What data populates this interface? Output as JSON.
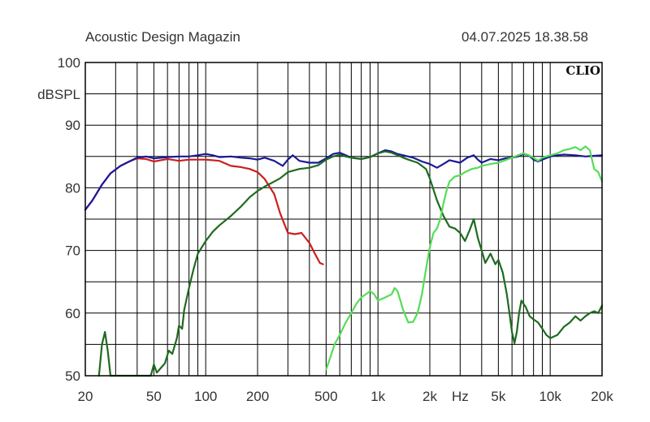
{
  "header": {
    "publisher": "Acoustic Design Magazin",
    "datetime": "04.07.2025 18.38.58"
  },
  "logo": "CLIO",
  "chart_data": {
    "type": "line",
    "title": "",
    "xlabel": "Hz",
    "ylabel": "dBSPL",
    "x_scale": "log",
    "xlim": [
      20,
      20000
    ],
    "ylim": [
      50,
      100
    ],
    "grid": true,
    "x_tick_labels": [
      {
        "v": 20,
        "label": "20"
      },
      {
        "v": 50,
        "label": "50"
      },
      {
        "v": 100,
        "label": "100"
      },
      {
        "v": 200,
        "label": "200"
      },
      {
        "v": 500,
        "label": "500"
      },
      {
        "v": 1000,
        "label": "1k"
      },
      {
        "v": 2000,
        "label": "2k"
      },
      {
        "v": 5000,
        "label": "5k"
      },
      {
        "v": 10000,
        "label": "10k"
      },
      {
        "v": 20000,
        "label": "20k"
      }
    ],
    "y_tick_labels": [
      {
        "v": 100,
        "label": "100"
      },
      {
        "v": 90,
        "label": "90"
      },
      {
        "v": 80,
        "label": "80"
      },
      {
        "v": 70,
        "label": "70"
      },
      {
        "v": 60,
        "label": "60"
      },
      {
        "v": 50,
        "label": "50"
      }
    ],
    "series": [
      {
        "color": "#cc1f1f",
        "points": [
          [
            20,
            76.5
          ],
          [
            22,
            78
          ],
          [
            25,
            80.5
          ],
          [
            28,
            82.3
          ],
          [
            32,
            83.5
          ],
          [
            36,
            84.2
          ],
          [
            40,
            84.7
          ],
          [
            45,
            84.6
          ],
          [
            50,
            84.2
          ],
          [
            55,
            84.4
          ],
          [
            60,
            84.6
          ],
          [
            70,
            84.3
          ],
          [
            80,
            84.5
          ],
          [
            100,
            84.5
          ],
          [
            120,
            84.3
          ],
          [
            140,
            83.5
          ],
          [
            160,
            83.3
          ],
          [
            180,
            83
          ],
          [
            200,
            82.5
          ],
          [
            220,
            81.4
          ],
          [
            250,
            79
          ],
          [
            270,
            76
          ],
          [
            300,
            72.8
          ],
          [
            330,
            72.6
          ],
          [
            360,
            72.8
          ],
          [
            400,
            71.2
          ],
          [
            430,
            69.5
          ],
          [
            460,
            68
          ],
          [
            480,
            67.8
          ]
        ]
      },
      {
        "color": "#1a1a99",
        "points": [
          [
            20,
            76.5
          ],
          [
            22,
            78
          ],
          [
            25,
            80.5
          ],
          [
            28,
            82.3
          ],
          [
            32,
            83.5
          ],
          [
            36,
            84.2
          ],
          [
            40,
            84.8
          ],
          [
            45,
            85
          ],
          [
            50,
            84.7
          ],
          [
            60,
            84.9
          ],
          [
            70,
            85
          ],
          [
            80,
            85
          ],
          [
            90,
            85.2
          ],
          [
            100,
            85.4
          ],
          [
            110,
            85.2
          ],
          [
            120,
            84.9
          ],
          [
            140,
            85
          ],
          [
            160,
            84.8
          ],
          [
            180,
            84.7
          ],
          [
            200,
            84.5
          ],
          [
            220,
            84.8
          ],
          [
            250,
            84.3
          ],
          [
            280,
            83.5
          ],
          [
            300,
            84.5
          ],
          [
            320,
            85.2
          ],
          [
            350,
            84.3
          ],
          [
            400,
            84
          ],
          [
            450,
            84
          ],
          [
            500,
            84.7
          ],
          [
            550,
            85.4
          ],
          [
            600,
            85.6
          ],
          [
            650,
            85.2
          ],
          [
            700,
            84.8
          ],
          [
            800,
            84.6
          ],
          [
            900,
            84.9
          ],
          [
            1000,
            85.5
          ],
          [
            1100,
            86
          ],
          [
            1200,
            85.8
          ],
          [
            1300,
            85.4
          ],
          [
            1400,
            85.2
          ],
          [
            1600,
            84.8
          ],
          [
            1800,
            84.2
          ],
          [
            2000,
            83.8
          ],
          [
            2200,
            83.2
          ],
          [
            2400,
            83.8
          ],
          [
            2600,
            84.4
          ],
          [
            2800,
            84.2
          ],
          [
            3000,
            84
          ],
          [
            3300,
            84.8
          ],
          [
            3600,
            85.2
          ],
          [
            3800,
            84.5
          ],
          [
            4000,
            84
          ],
          [
            4500,
            84.6
          ],
          [
            5000,
            84.4
          ],
          [
            5500,
            84.7
          ],
          [
            6000,
            84.8
          ],
          [
            6500,
            85
          ],
          [
            7000,
            85.4
          ],
          [
            7500,
            85.2
          ],
          [
            8000,
            84.5
          ],
          [
            8500,
            84.2
          ],
          [
            9000,
            84.5
          ],
          [
            10000,
            85
          ],
          [
            11000,
            85.2
          ],
          [
            12000,
            85.3
          ],
          [
            14000,
            85.2
          ],
          [
            16000,
            85
          ],
          [
            18000,
            85.1
          ],
          [
            20000,
            85.2
          ]
        ]
      },
      {
        "color": "#1e6b1e",
        "points": [
          [
            24,
            50
          ],
          [
            25,
            55
          ],
          [
            26,
            57
          ],
          [
            27,
            54
          ],
          [
            28,
            50
          ],
          [
            48,
            50
          ],
          [
            50,
            51.8
          ],
          [
            52,
            50.5
          ],
          [
            58,
            52
          ],
          [
            61,
            54
          ],
          [
            64,
            53.5
          ],
          [
            68,
            56
          ],
          [
            70,
            58
          ],
          [
            73,
            57.5
          ],
          [
            75,
            60.5
          ],
          [
            80,
            64
          ],
          [
            85,
            67
          ],
          [
            90,
            69.5
          ],
          [
            100,
            71.5
          ],
          [
            110,
            73
          ],
          [
            120,
            74
          ],
          [
            140,
            75.5
          ],
          [
            160,
            77
          ],
          [
            180,
            78.5
          ],
          [
            200,
            79.5
          ],
          [
            220,
            80.2
          ],
          [
            250,
            81
          ],
          [
            270,
            81.5
          ],
          [
            300,
            82.5
          ],
          [
            350,
            83
          ],
          [
            400,
            83.2
          ],
          [
            450,
            83.6
          ],
          [
            500,
            84.5
          ],
          [
            550,
            85
          ],
          [
            600,
            85.3
          ],
          [
            650,
            85
          ],
          [
            700,
            84.8
          ],
          [
            800,
            84.6
          ],
          [
            900,
            84.9
          ],
          [
            1000,
            85.5
          ],
          [
            1100,
            85.8
          ],
          [
            1200,
            85.6
          ],
          [
            1300,
            85.2
          ],
          [
            1400,
            84.8
          ],
          [
            1500,
            84.5
          ],
          [
            1700,
            84
          ],
          [
            1900,
            83
          ],
          [
            2000,
            81.5
          ],
          [
            2200,
            78
          ],
          [
            2400,
            75.5
          ],
          [
            2600,
            73.8
          ],
          [
            2800,
            73.5
          ],
          [
            3000,
            72.8
          ],
          [
            3200,
            71.5
          ],
          [
            3400,
            73.2
          ],
          [
            3600,
            75
          ],
          [
            3800,
            72
          ],
          [
            4000,
            70
          ],
          [
            4200,
            68
          ],
          [
            4500,
            69.5
          ],
          [
            4800,
            67.8
          ],
          [
            5000,
            68.5
          ],
          [
            5300,
            66.5
          ],
          [
            5600,
            63
          ],
          [
            5800,
            60
          ],
          [
            6000,
            57
          ],
          [
            6200,
            55.2
          ],
          [
            6400,
            57
          ],
          [
            6600,
            60
          ],
          [
            6800,
            62
          ],
          [
            7200,
            61
          ],
          [
            7600,
            59.5
          ],
          [
            8000,
            59
          ],
          [
            8500,
            58.5
          ],
          [
            9000,
            57.5
          ],
          [
            9500,
            56.5
          ],
          [
            10000,
            56
          ],
          [
            11000,
            56.5
          ],
          [
            12000,
            57.8
          ],
          [
            13000,
            58.5
          ],
          [
            14000,
            59.5
          ],
          [
            15000,
            58.8
          ],
          [
            16000,
            59.5
          ],
          [
            17000,
            60
          ],
          [
            18000,
            60.3
          ],
          [
            19000,
            60
          ],
          [
            20000,
            61.2
          ]
        ]
      },
      {
        "color": "#55dd55",
        "points": [
          [
            500,
            51
          ],
          [
            530,
            53
          ],
          [
            560,
            55
          ],
          [
            600,
            56.5
          ],
          [
            650,
            58.5
          ],
          [
            700,
            60
          ],
          [
            750,
            61.5
          ],
          [
            800,
            62.5
          ],
          [
            850,
            63
          ],
          [
            900,
            63.5
          ],
          [
            950,
            63
          ],
          [
            1000,
            62
          ],
          [
            1100,
            62.5
          ],
          [
            1200,
            63
          ],
          [
            1250,
            64
          ],
          [
            1300,
            63.5
          ],
          [
            1400,
            60.5
          ],
          [
            1500,
            58.5
          ],
          [
            1600,
            58.6
          ],
          [
            1700,
            60
          ],
          [
            1800,
            63
          ],
          [
            1900,
            67
          ],
          [
            2000,
            70.5
          ],
          [
            2100,
            72.8
          ],
          [
            2200,
            73.5
          ],
          [
            2300,
            75
          ],
          [
            2400,
            77.5
          ],
          [
            2500,
            79.5
          ],
          [
            2600,
            81
          ],
          [
            2800,
            81.8
          ],
          [
            3000,
            82
          ],
          [
            3200,
            82.5
          ],
          [
            3500,
            83
          ],
          [
            3800,
            83.2
          ],
          [
            4000,
            83.5
          ],
          [
            4500,
            83.8
          ],
          [
            5000,
            84
          ],
          [
            5500,
            84.4
          ],
          [
            6000,
            84.8
          ],
          [
            6500,
            85.2
          ],
          [
            7000,
            85.5
          ],
          [
            7500,
            85.2
          ],
          [
            8000,
            84.8
          ],
          [
            8500,
            84.3
          ],
          [
            9000,
            84.8
          ],
          [
            10000,
            85.2
          ],
          [
            11000,
            85.5
          ],
          [
            12000,
            86
          ],
          [
            13000,
            86.2
          ],
          [
            14000,
            86.5
          ],
          [
            15000,
            86
          ],
          [
            16000,
            86.6
          ],
          [
            17000,
            86
          ],
          [
            18000,
            83
          ],
          [
            19000,
            82.5
          ],
          [
            20000,
            81
          ]
        ]
      }
    ]
  }
}
